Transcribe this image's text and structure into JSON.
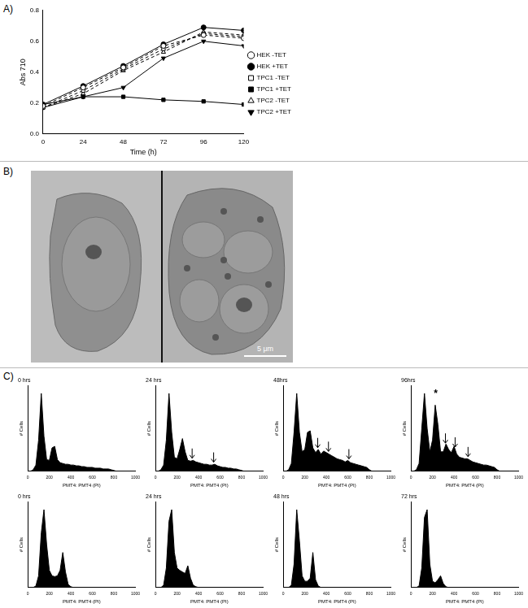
{
  "panel_labels": [
    "A)",
    "B)",
    "C)"
  ],
  "image": {
    "scale_bar": "5 μm"
  },
  "chart_data": [
    {
      "type": "line",
      "x_label": "Time (h)",
      "y_label": "Abs 710",
      "x": [
        0,
        24,
        48,
        72,
        96,
        120
      ],
      "xlim": [
        0,
        120
      ],
      "xticks": [
        0,
        24,
        48,
        72,
        96,
        120
      ],
      "ylim": [
        0,
        0.8
      ],
      "yticks": [
        {
          "value": 0,
          "label": "0.0"
        },
        {
          "value": 0.2,
          "label": "0.2"
        },
        {
          "value": 0.4,
          "label": "0.4"
        },
        {
          "value": 0.6,
          "label": "0.6"
        },
        {
          "value": 0.8,
          "label": "0.8"
        }
      ],
      "grid": false,
      "legend": "right",
      "series": [
        {
          "name": "HEK -TET",
          "color": "#000000",
          "marker": "circle-open",
          "line_style": "dashed",
          "values": [
            0.18,
            0.3,
            0.43,
            0.57,
            0.64,
            0.62
          ]
        },
        {
          "name": "HEK +TET",
          "color": "#000000",
          "marker": "circle",
          "line_style": "solid",
          "values": [
            0.19,
            0.31,
            0.44,
            0.58,
            0.69,
            0.67
          ]
        },
        {
          "name": "TPC1 -TET",
          "color": "#000000",
          "marker": "square-open",
          "line_style": "dashed",
          "values": [
            0.17,
            0.28,
            0.42,
            0.55,
            0.65,
            0.63
          ]
        },
        {
          "name": "TPC1 +TET",
          "color": "#000000",
          "marker": "square",
          "line_style": "solid",
          "values": [
            0.19,
            0.24,
            0.24,
            0.22,
            0.21,
            0.19
          ]
        },
        {
          "name": "TPC2 -TET",
          "color": "#000000",
          "marker": "triangle-open",
          "line_style": "dashed",
          "values": [
            0.17,
            0.26,
            0.41,
            0.53,
            0.66,
            0.64
          ]
        },
        {
          "name": "TPC2 +TET",
          "color": "#000000",
          "marker": "triangle-down",
          "line_style": "solid",
          "values": [
            0.17,
            0.24,
            0.3,
            0.49,
            0.6,
            0.57
          ]
        }
      ]
    },
    {
      "type": "area",
      "title": "0 hrs",
      "x_label": "PMT4: PMT4 (PI)",
      "y_label": "# Cells",
      "color": "#000000",
      "x": [
        0,
        25,
        50,
        75,
        100,
        125,
        150,
        175,
        200,
        225,
        250,
        275,
        300,
        325,
        350,
        375,
        400,
        425,
        450,
        475,
        500,
        525,
        550,
        575,
        600,
        625,
        650,
        675,
        700,
        725,
        750,
        775,
        800,
        825,
        850,
        875,
        900,
        925,
        950,
        975,
        1000
      ],
      "values": [
        0,
        0,
        2,
        8,
        40,
        100,
        45,
        15,
        14,
        30,
        32,
        15,
        11,
        10,
        9,
        9,
        8,
        8,
        7,
        7,
        6,
        6,
        5,
        5,
        5,
        4,
        4,
        4,
        3,
        3,
        3,
        2,
        1,
        0,
        0,
        0,
        0,
        0,
        0,
        0,
        0
      ],
      "xlim": [
        0,
        1000
      ],
      "xticks": [
        0,
        200,
        400,
        600,
        800,
        1000
      ],
      "ylim": [
        0,
        110
      ],
      "yticks": [],
      "tick_labels": "x",
      "grid": false,
      "arrows": []
    },
    {
      "type": "area",
      "title": "24 hrs",
      "x_label": "PMT4: PMT4 (PI)",
      "y_label": "# Cells",
      "color": "#000000",
      "x": [
        0,
        25,
        50,
        75,
        100,
        125,
        150,
        175,
        200,
        225,
        250,
        275,
        300,
        325,
        350,
        375,
        400,
        425,
        450,
        475,
        500,
        525,
        550,
        575,
        600,
        625,
        650,
        675,
        700,
        725,
        750,
        775,
        800,
        825,
        850,
        875,
        900,
        925,
        950,
        975,
        1000
      ],
      "values": [
        0,
        0,
        2,
        8,
        40,
        100,
        50,
        18,
        16,
        28,
        42,
        25,
        14,
        13,
        14,
        12,
        11,
        10,
        9,
        9,
        8,
        8,
        9,
        7,
        6,
        5,
        5,
        4,
        4,
        3,
        3,
        2,
        1,
        0,
        0,
        0,
        0,
        0,
        0,
        0,
        0
      ],
      "xlim": [
        0,
        1000
      ],
      "xticks": [
        0,
        200,
        400,
        600,
        800,
        1000
      ],
      "ylim": [
        0,
        110
      ],
      "yticks": [],
      "tick_labels": "x",
      "grid": false,
      "arrows": [
        340,
        540
      ]
    },
    {
      "type": "area",
      "title": "48hrs",
      "x_label": "PMT4: PMT4 (PI)",
      "y_label": "# Cells",
      "color": "#000000",
      "x": [
        0,
        25,
        50,
        75,
        100,
        125,
        150,
        175,
        200,
        225,
        250,
        275,
        300,
        325,
        350,
        375,
        400,
        425,
        450,
        475,
        500,
        525,
        550,
        575,
        600,
        625,
        650,
        675,
        700,
        725,
        750,
        775,
        800,
        825,
        850,
        875,
        900,
        925,
        950,
        975,
        1000
      ],
      "values": [
        0,
        0,
        2,
        10,
        50,
        100,
        50,
        25,
        28,
        50,
        52,
        30,
        24,
        28,
        22,
        26,
        24,
        22,
        20,
        18,
        16,
        15,
        14,
        12,
        14,
        11,
        10,
        9,
        8,
        7,
        6,
        5,
        2,
        0,
        0,
        0,
        0,
        0,
        0,
        0,
        0
      ],
      "xlim": [
        0,
        1000
      ],
      "xticks": [
        0,
        200,
        400,
        600,
        800,
        1000
      ],
      "ylim": [
        0,
        110
      ],
      "yticks": [],
      "tick_labels": "x",
      "grid": false,
      "arrows": [
        320,
        420,
        610
      ]
    },
    {
      "type": "area",
      "title": "96hrs",
      "x_label": "PMT4: PMT4 (PI)",
      "y_label": "# Cells",
      "color": "#000000",
      "x": [
        0,
        25,
        50,
        75,
        100,
        125,
        150,
        175,
        200,
        225,
        250,
        275,
        300,
        325,
        350,
        375,
        400,
        425,
        450,
        475,
        500,
        525,
        550,
        575,
        600,
        625,
        650,
        675,
        700,
        725,
        750,
        775,
        800,
        825,
        850,
        875,
        900,
        925,
        950,
        975,
        1000
      ],
      "values": [
        0,
        0,
        2,
        10,
        55,
        100,
        55,
        25,
        40,
        85,
        60,
        25,
        25,
        35,
        28,
        24,
        32,
        22,
        18,
        17,
        16,
        16,
        14,
        12,
        11,
        10,
        9,
        8,
        8,
        7,
        6,
        5,
        2,
        0,
        0,
        0,
        0,
        0,
        0,
        0,
        0
      ],
      "xlim": [
        0,
        1000
      ],
      "xticks": [
        0,
        200,
        400,
        600,
        800,
        1000
      ],
      "ylim": [
        0,
        110
      ],
      "yticks": [],
      "tick_labels": "x",
      "grid": false,
      "arrows": [
        320,
        410,
        530
      ],
      "annotations": [
        {
          "text": "*",
          "x": 230,
          "y": 95
        }
      ]
    },
    {
      "type": "area",
      "title": "0 hrs",
      "x_label": "PMT4: PMT4 (PI)",
      "y_label": "# Cells",
      "color": "#000000",
      "x": [
        0,
        25,
        50,
        75,
        100,
        125,
        150,
        175,
        200,
        225,
        250,
        275,
        300,
        325,
        350,
        375,
        400,
        425,
        450,
        475,
        500,
        525,
        550,
        575,
        600,
        625,
        650,
        675,
        700,
        725,
        750,
        775,
        800,
        825,
        850,
        875,
        900,
        925,
        950,
        975,
        1000
      ],
      "values": [
        0,
        0,
        0,
        2,
        15,
        70,
        100,
        55,
        22,
        15,
        14,
        15,
        22,
        45,
        20,
        4,
        1,
        0,
        0,
        0,
        0,
        0,
        0,
        0,
        0,
        0,
        0,
        0,
        0,
        0,
        0,
        0,
        0,
        0,
        0,
        0,
        0,
        0,
        0,
        0,
        0
      ],
      "xlim": [
        0,
        1000
      ],
      "xticks": [
        0,
        200,
        400,
        600,
        800,
        1000
      ],
      "ylim": [
        0,
        110
      ],
      "yticks": [],
      "tick_labels": "x",
      "grid": false,
      "arrows": []
    },
    {
      "type": "area",
      "title": "24 hrs",
      "x_label": "PMT4: PMT4 (PI)",
      "y_label": "# Cells",
      "color": "#000000",
      "x": [
        0,
        25,
        50,
        75,
        100,
        125,
        150,
        175,
        200,
        225,
        250,
        275,
        300,
        325,
        350,
        375,
        400,
        425,
        450,
        475,
        500,
        525,
        550,
        575,
        600,
        625,
        650,
        675,
        700,
        725,
        750,
        775,
        800,
        825,
        850,
        875,
        900,
        925,
        950,
        975,
        1000
      ],
      "values": [
        0,
        0,
        0,
        3,
        25,
        85,
        100,
        45,
        25,
        22,
        20,
        18,
        28,
        12,
        3,
        1,
        0,
        0,
        0,
        0,
        0,
        0,
        0,
        0,
        0,
        0,
        0,
        0,
        0,
        0,
        0,
        0,
        0,
        0,
        0,
        0,
        0,
        0,
        0,
        0,
        0
      ],
      "xlim": [
        0,
        1000
      ],
      "xticks": [
        0,
        200,
        400,
        600,
        800,
        1000
      ],
      "ylim": [
        0,
        110
      ],
      "yticks": [],
      "tick_labels": "x",
      "grid": false,
      "arrows": []
    },
    {
      "type": "area",
      "title": "48 hrs",
      "x_label": "PMT4: PMT4 (PI)",
      "y_label": "# Cells",
      "color": "#000000",
      "x": [
        0,
        25,
        50,
        75,
        100,
        125,
        150,
        175,
        200,
        225,
        250,
        275,
        300,
        325,
        350,
        375,
        400,
        425,
        450,
        475,
        500,
        525,
        550,
        575,
        600,
        625,
        650,
        675,
        700,
        725,
        750,
        775,
        800,
        825,
        850,
        875,
        900,
        925,
        950,
        975,
        1000
      ],
      "values": [
        0,
        0,
        0,
        3,
        30,
        100,
        60,
        15,
        8,
        8,
        12,
        45,
        10,
        2,
        0,
        0,
        0,
        0,
        0,
        0,
        0,
        0,
        0,
        0,
        0,
        0,
        0,
        0,
        0,
        0,
        0,
        0,
        0,
        0,
        0,
        0,
        0,
        0,
        0,
        0,
        0
      ],
      "xlim": [
        0,
        1000
      ],
      "xticks": [
        0,
        200,
        400,
        600,
        800,
        1000
      ],
      "ylim": [
        0,
        110
      ],
      "yticks": [],
      "tick_labels": "x",
      "grid": false,
      "arrows": []
    },
    {
      "type": "area",
      "title": "72 hrs",
      "x_label": "PMT4: PMT4 (PI)",
      "y_label": "# Cells",
      "color": "#000000",
      "x": [
        0,
        25,
        50,
        75,
        100,
        125,
        150,
        175,
        200,
        225,
        250,
        275,
        300,
        325,
        350,
        375,
        400,
        425,
        450,
        475,
        500,
        525,
        550,
        575,
        600,
        625,
        650,
        675,
        700,
        725,
        750,
        775,
        800,
        825,
        850,
        875,
        900,
        925,
        950,
        975,
        1000
      ],
      "values": [
        0,
        0,
        0,
        2,
        25,
        90,
        100,
        30,
        8,
        6,
        10,
        15,
        5,
        1,
        0,
        0,
        0,
        0,
        0,
        0,
        0,
        0,
        0,
        0,
        0,
        0,
        0,
        0,
        0,
        0,
        0,
        0,
        0,
        0,
        0,
        0,
        0,
        0,
        0,
        0,
        0
      ],
      "xlim": [
        0,
        1000
      ],
      "xticks": [
        0,
        200,
        400,
        600,
        800,
        1000
      ],
      "ylim": [
        0,
        110
      ],
      "yticks": [],
      "tick_labels": "x",
      "grid": false,
      "arrows": []
    }
  ]
}
